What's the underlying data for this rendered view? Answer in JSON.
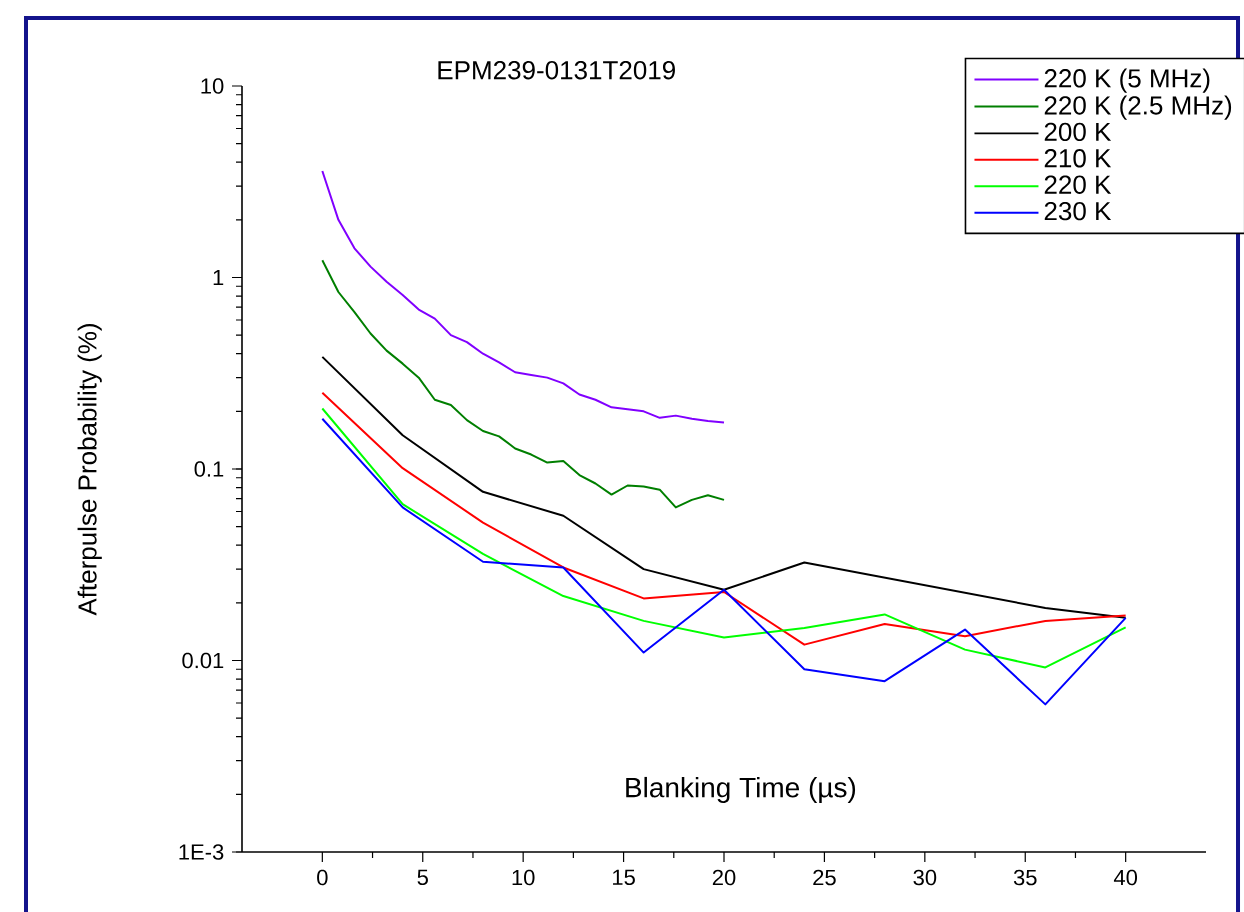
{
  "chart_data": {
    "type": "line",
    "title": "EPM239-0131T2019",
    "xlabel": "Blanking Time (µs)",
    "ylabel": "Afterpulse Probability (%)",
    "log": "y",
    "xlim": [
      -4,
      44
    ],
    "ylim": [
      0.001,
      10
    ],
    "xticks": [
      0,
      5,
      10,
      15,
      20,
      25,
      30,
      35,
      40
    ],
    "yticks": [
      {
        "value": 0.001,
        "label": "1E-3"
      },
      0.01,
      0.1,
      1,
      10
    ],
    "grid": false,
    "legend": "top right",
    "marker": "none",
    "line_style": "solid",
    "series": [
      {
        "name": "220 K (5 MHz)",
        "color": "#8000ff",
        "x": [
          0,
          0.8,
          1.6,
          2.4,
          3.2,
          4,
          4.8,
          5.6,
          6.4,
          7.2,
          8,
          8.8,
          9.6,
          10.4,
          11.2,
          12,
          12.8,
          13.6,
          14.4,
          15.2,
          16,
          16.8,
          17.6,
          18.4,
          19.2,
          20
        ],
        "values": [
          3.6,
          2.0,
          1.42,
          1.14,
          0.95,
          0.81,
          0.68,
          0.61,
          0.5,
          0.46,
          0.4,
          0.36,
          0.32,
          0.31,
          0.3,
          0.28,
          0.245,
          0.23,
          0.21,
          0.205,
          0.2,
          0.185,
          0.19,
          0.183,
          0.178,
          0.175
        ]
      },
      {
        "name": "220 K (2.5 MHz)",
        "color": "#007f00",
        "x": [
          0,
          0.8,
          1.6,
          2.4,
          3.2,
          4,
          4.8,
          5.6,
          6.4,
          7.2,
          8,
          8.8,
          9.6,
          10.4,
          11.2,
          12,
          12.8,
          13.6,
          14.4,
          15.2,
          16,
          16.8,
          17.6,
          18.4,
          19.2,
          20
        ],
        "values": [
          1.23,
          0.84,
          0.66,
          0.51,
          0.415,
          0.355,
          0.3,
          0.23,
          0.216,
          0.18,
          0.158,
          0.148,
          0.128,
          0.119,
          0.108,
          0.11,
          0.093,
          0.084,
          0.0735,
          0.082,
          0.081,
          0.078,
          0.063,
          0.069,
          0.073,
          0.069
        ]
      },
      {
        "name": "200 K",
        "color": "#000000",
        "x": [
          0,
          4,
          8,
          12,
          16,
          20,
          24,
          36,
          40
        ],
        "values": [
          0.385,
          0.15,
          0.076,
          0.057,
          0.03,
          0.0234,
          0.0325,
          0.0188,
          0.0167
        ]
      },
      {
        "name": "210 K",
        "color": "#ff0000",
        "x": [
          0,
          4,
          8,
          12,
          16,
          20,
          24,
          28,
          32,
          36,
          40
        ],
        "values": [
          0.25,
          0.101,
          0.0525,
          0.0306,
          0.0211,
          0.0228,
          0.0121,
          0.0155,
          0.0134,
          0.0161,
          0.0172
        ]
      },
      {
        "name": "220 K",
        "color": "#00ff00",
        "x": [
          0,
          4,
          8,
          12,
          16,
          20,
          24,
          28,
          32,
          36,
          40
        ],
        "values": [
          0.207,
          0.0655,
          0.036,
          0.0217,
          0.0161,
          0.0132,
          0.0148,
          0.0174,
          0.0114,
          0.0092,
          0.0149
        ]
      },
      {
        "name": "230 K",
        "color": "#0000ff",
        "x": [
          0,
          4,
          8,
          12,
          16,
          20,
          24,
          28,
          32,
          36,
          40
        ],
        "values": [
          0.183,
          0.063,
          0.0328,
          0.0306,
          0.011,
          0.0234,
          0.009,
          0.0078,
          0.0145,
          0.0059,
          0.0167
        ]
      }
    ]
  }
}
